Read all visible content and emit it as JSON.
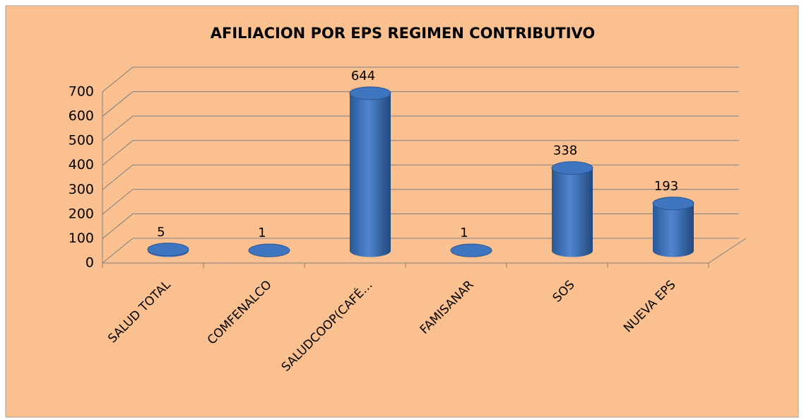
{
  "chart_data": {
    "type": "bar3d",
    "title": "AFILIACION POR EPS REGIMEN CONTRIBUTIVO",
    "categories": [
      "SALUD TOTAL",
      "COMFENALCO",
      "SALUDCOOP(CAFÉ…",
      "FAMISANAR",
      "SOS",
      "NUEVA EPS"
    ],
    "values": [
      5,
      1,
      644,
      1,
      338,
      193
    ],
    "color": "#3a6fb8",
    "ylim": [
      0,
      700
    ],
    "yticks": [
      0,
      100,
      200,
      300,
      400,
      500,
      600,
      700
    ],
    "grid": true
  }
}
